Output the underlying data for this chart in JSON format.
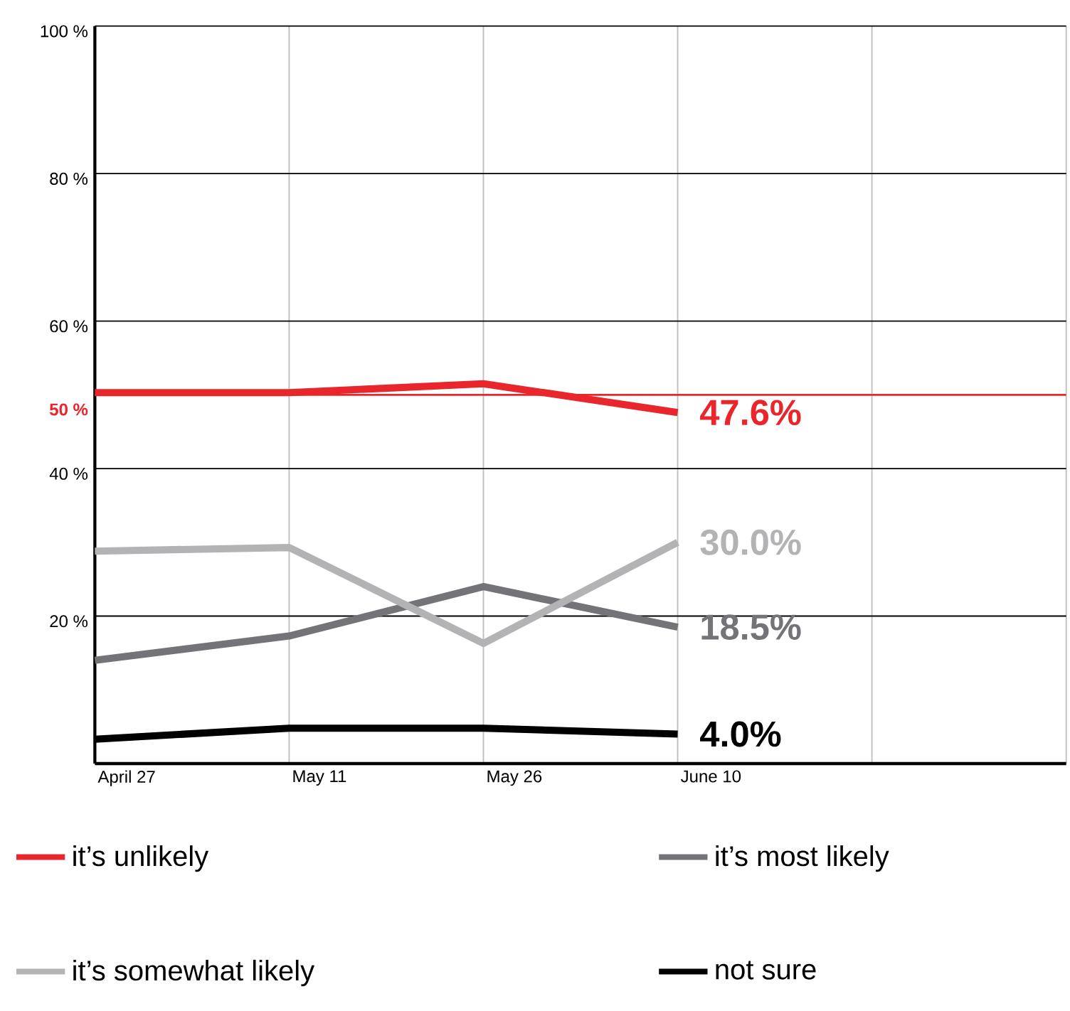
{
  "chart_data": {
    "type": "line",
    "categories": [
      "April 27",
      "May 11",
      "May 26",
      "June 10",
      null,
      null
    ],
    "series": [
      {
        "name": "it’s unlikely",
        "color": "#e8262b",
        "values": [
          50.3,
          50.3,
          51.5,
          47.6,
          null,
          null
        ],
        "value_labels": [
          null,
          null,
          null,
          "47.6%",
          null,
          null
        ]
      },
      {
        "name": "it’s most likely",
        "color": "#747378",
        "values": [
          14,
          17.3,
          24,
          18.5,
          null,
          null
        ],
        "value_labels": [
          null,
          null,
          null,
          "18.5%",
          null,
          null
        ]
      },
      {
        "name": "it’s somewhat likely",
        "color": "#b3b3b5",
        "values": [
          28.8,
          29.3,
          16.3,
          30.0,
          null,
          null
        ],
        "value_labels": [
          null,
          null,
          null,
          "30.0%",
          null,
          null
        ]
      },
      {
        "name": "not sure",
        "color": "#000000",
        "values": [
          3.3,
          4.8,
          4.8,
          4.0,
          null,
          null
        ],
        "value_labels": [
          null,
          null,
          null,
          "4.0%",
          null,
          null
        ]
      }
    ],
    "ylim": [
      0,
      100
    ],
    "yticks": [
      {
        "value": 20,
        "label": "20 %"
      },
      {
        "value": 40,
        "label": "40 %"
      },
      {
        "value": 60,
        "label": "60 %"
      },
      {
        "value": 80,
        "label": "80 %"
      },
      {
        "value": 100,
        "label": "100 %"
      }
    ],
    "ref_lines": [
      {
        "axis": "y",
        "value": 50,
        "label": "50 %",
        "color": "#e8262b"
      }
    ],
    "grid": true,
    "legend": "bottom",
    "marker": "none",
    "line_style": "solid"
  }
}
